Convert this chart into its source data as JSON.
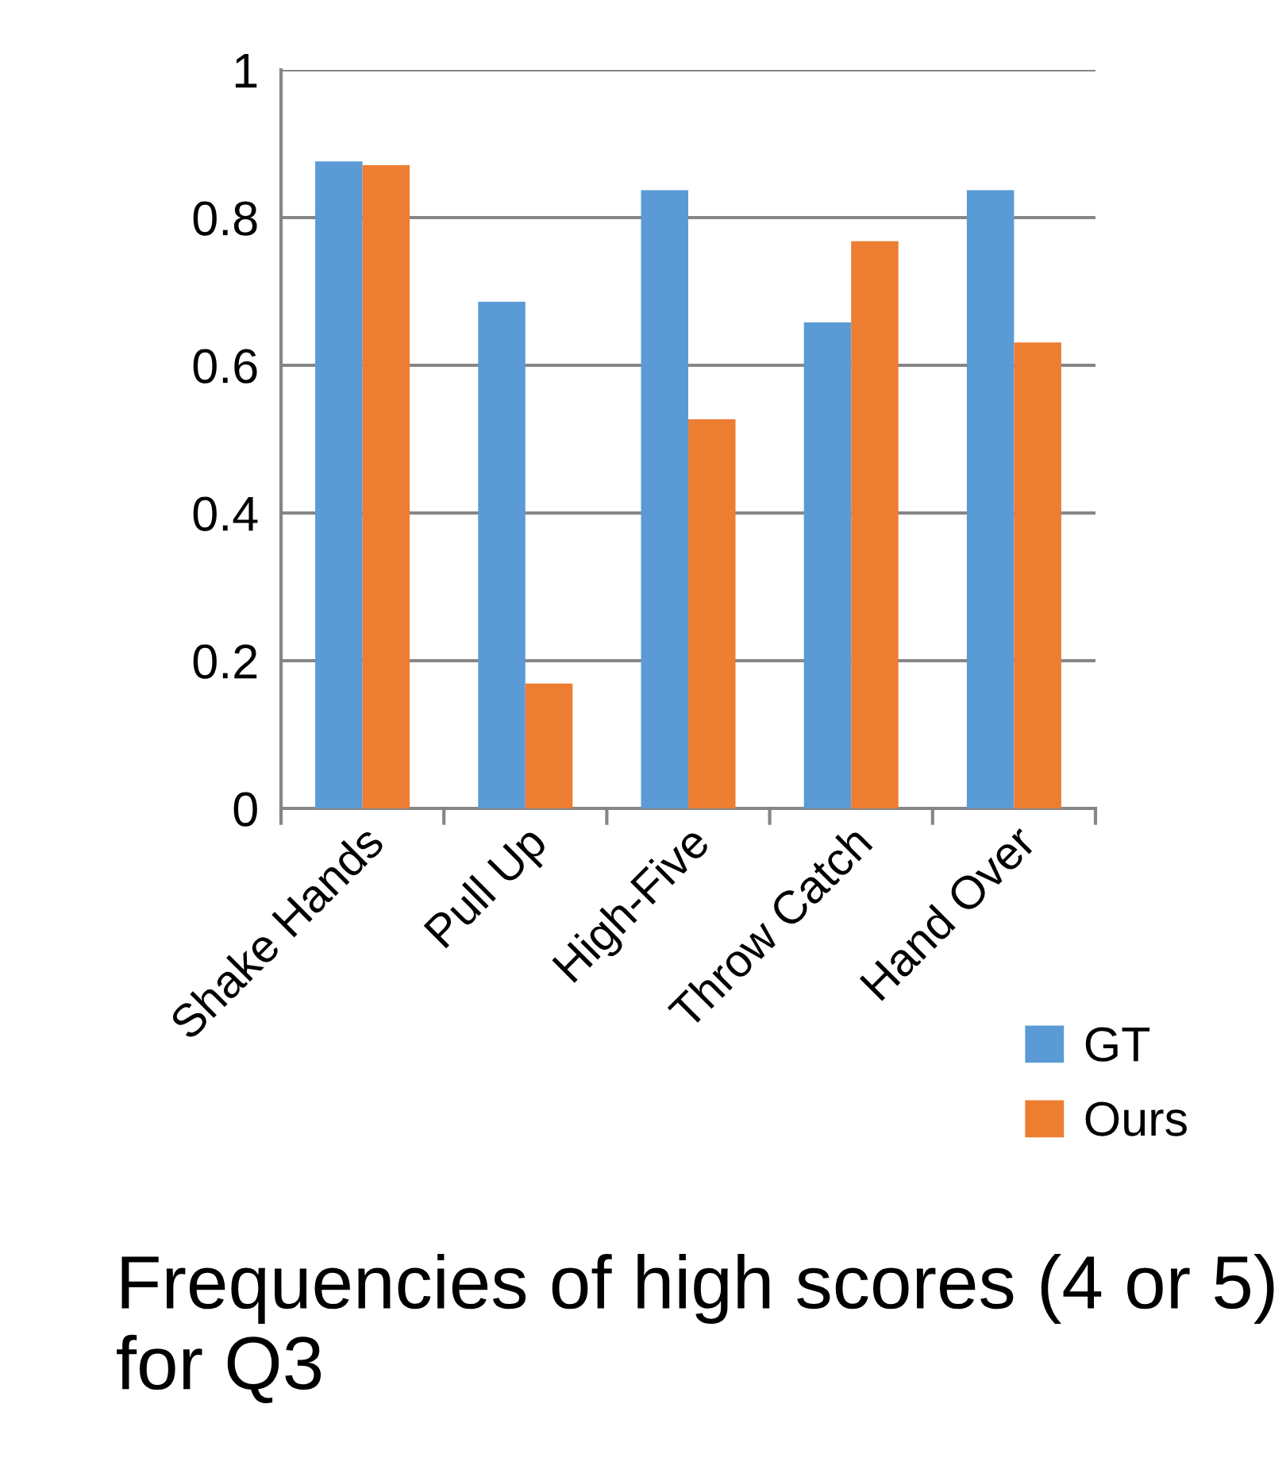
{
  "chart_data": {
    "type": "bar",
    "categories": [
      "Shake Hands",
      "Pull Up",
      "High-Five",
      "Throw Catch",
      "Hand Over"
    ],
    "series": [
      {
        "name": "GT",
        "color": "#5b9bd5",
        "values": [
          0.876,
          0.686,
          0.837,
          0.658,
          0.837
        ]
      },
      {
        "name": "Ours",
        "color": "#ed7d31",
        "values": [
          0.871,
          0.169,
          0.527,
          0.768,
          0.631
        ]
      }
    ],
    "ylim": [
      0,
      1
    ],
    "yticks": [
      0,
      0.2,
      0.4,
      0.6,
      0.8,
      1
    ],
    "grid": "y",
    "legend": "bottom right",
    "annotations": [
      "Frequencies of high scores (4 or 5) for Q3"
    ]
  }
}
